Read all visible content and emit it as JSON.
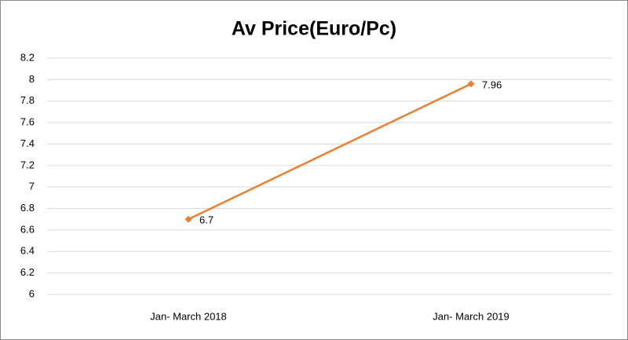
{
  "chart_data": {
    "type": "line",
    "title": "Av Price(Euro/Pc)",
    "categories": [
      "Jan- March 2018",
      "Jan- March 2019"
    ],
    "values": [
      6.7,
      7.96
    ],
    "color": "#ed7d31",
    "ylim": [
      6,
      8.2
    ],
    "yticks": [
      6,
      6.2,
      6.4,
      6.6,
      6.8,
      7,
      7.2,
      7.4,
      7.6,
      7.8,
      8,
      8.2
    ],
    "grid": true
  }
}
